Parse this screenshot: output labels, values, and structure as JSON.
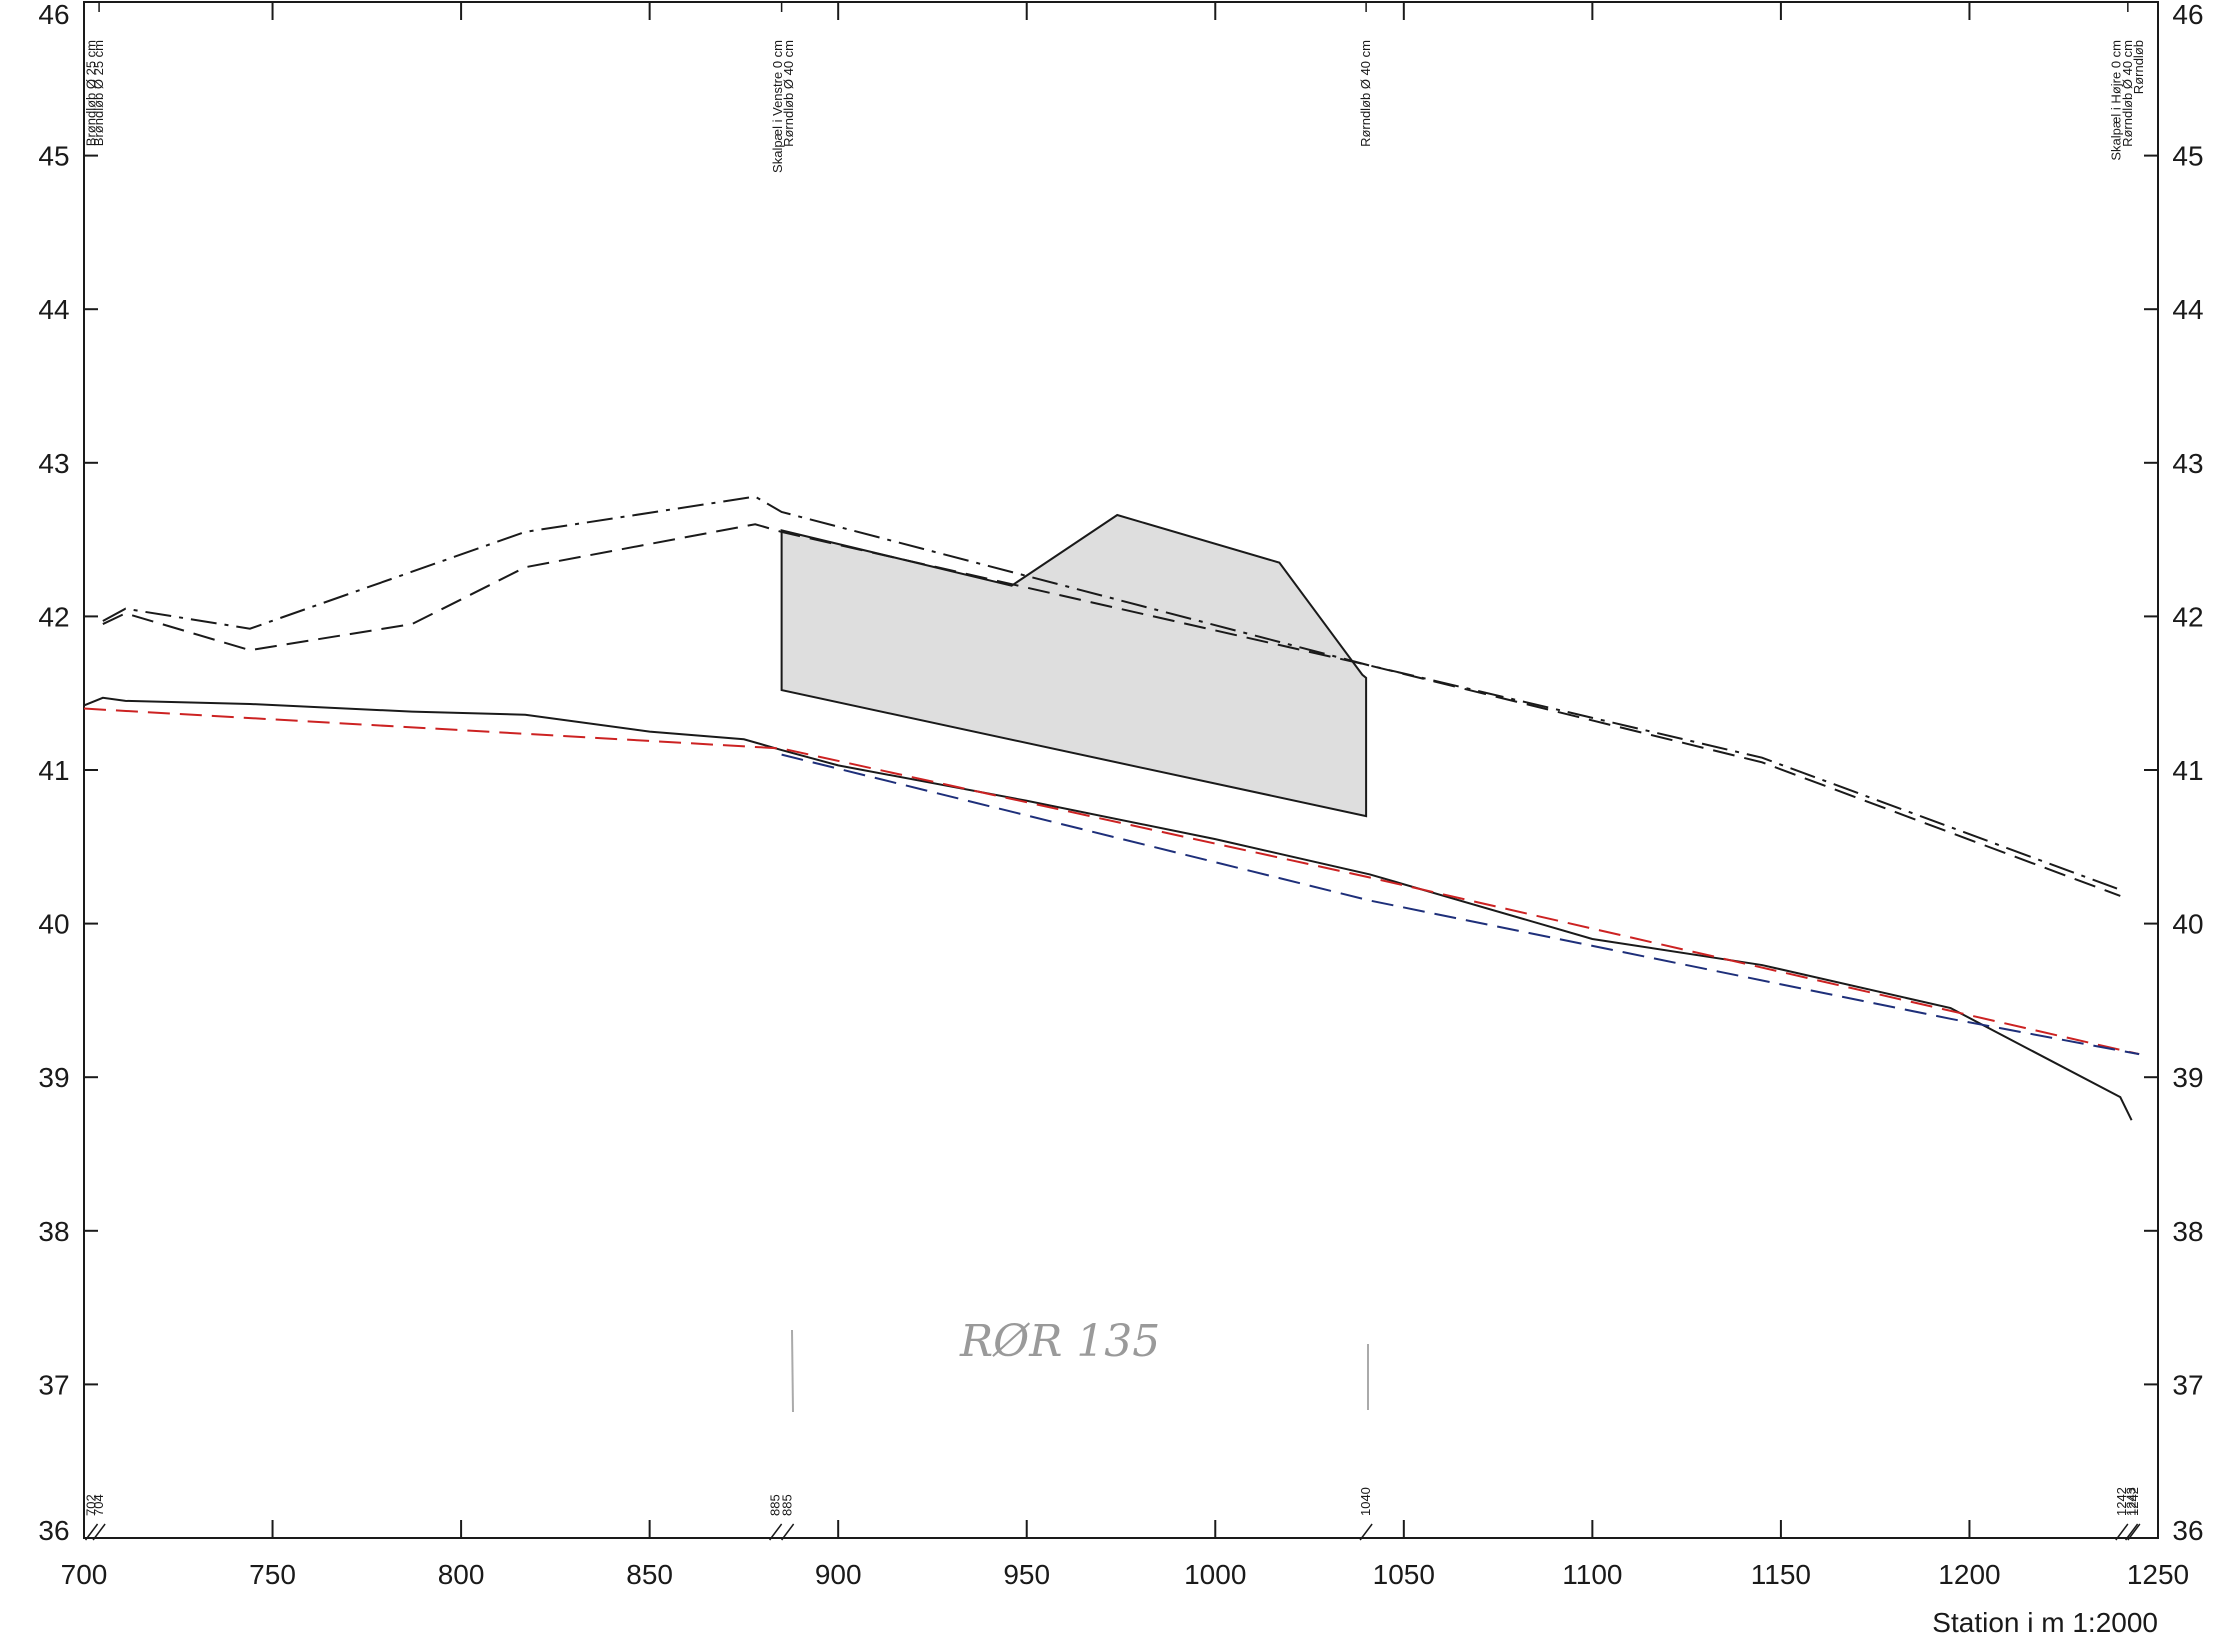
{
  "chart_data": {
    "type": "line",
    "title": "",
    "xlabel": "Station i m  1:2000",
    "ylabel": "",
    "xlim": [
      700,
      1250
    ],
    "ylim": [
      36,
      46
    ],
    "x_ticks": [
      700,
      750,
      800,
      850,
      900,
      950,
      1000,
      1050,
      1100,
      1150,
      1200,
      1250
    ],
    "y_ticks": [
      36,
      37,
      38,
      39,
      40,
      41,
      42,
      43,
      44,
      45,
      46
    ],
    "grid": false,
    "series": [
      {
        "name": "",
        "style": "dashdot",
        "color": "#1a1a1a",
        "x": [
          705,
          711,
          744,
          817,
          878,
          885,
          1041,
          1145,
          1240
        ],
        "y": [
          41.97,
          42.05,
          41.92,
          42.55,
          42.78,
          42.68,
          41.68,
          41.08,
          40.22
        ]
      },
      {
        "name": "",
        "style": "dashed",
        "color": "#1a1a1a",
        "x": [
          705,
          711,
          744,
          787,
          817,
          878,
          885,
          1041,
          1145,
          1240
        ],
        "y": [
          41.95,
          42.02,
          41.78,
          41.95,
          42.32,
          42.6,
          42.55,
          41.68,
          41.05,
          40.18
        ]
      },
      {
        "name": "",
        "style": "solid",
        "color": "#1a1a1a",
        "x": [
          700,
          705,
          711,
          744,
          787,
          817,
          850,
          875,
          885,
          900,
          950,
          1000,
          1041,
          1100,
          1145,
          1195,
          1240,
          1243
        ],
        "y": [
          41.42,
          41.47,
          41.45,
          41.43,
          41.38,
          41.36,
          41.25,
          41.2,
          41.13,
          41.03,
          40.8,
          40.55,
          40.32,
          39.9,
          39.73,
          39.45,
          38.87,
          38.72
        ]
      },
      {
        "name": "",
        "style": "dashed",
        "color": "#cc2222",
        "x": [
          700,
          885,
          1041,
          1245
        ],
        "y": [
          41.4,
          41.14,
          40.3,
          39.15
        ]
      },
      {
        "name": "",
        "style": "dashed",
        "color": "#1e2f7a",
        "x": [
          885,
          1041,
          1195,
          1245
        ],
        "y": [
          41.1,
          40.15,
          39.38,
          39.15
        ]
      }
    ],
    "filled_area": {
      "color": "#dedede",
      "x": [
        885,
        946,
        974,
        1017,
        1039,
        1040,
        1040,
        885
      ],
      "y": [
        42.56,
        42.2,
        42.66,
        42.35,
        41.62,
        41.6,
        40.7,
        41.52
      ]
    },
    "stations": [
      {
        "x": 702,
        "label": "702"
      },
      {
        "x": 704,
        "label": "704"
      },
      {
        "x": 885,
        "label": "885"
      },
      {
        "x": 885,
        "label": "885"
      },
      {
        "x": 1040,
        "label": "1040"
      },
      {
        "x": 1242,
        "label": "1242"
      },
      {
        "x": 1242,
        "label": "1242"
      },
      {
        "x": 1243,
        "label": "1243"
      }
    ],
    "annotations": [
      {
        "x": 702,
        "text": "Brøndløb Ø 25 cm"
      },
      {
        "x": 704,
        "text": "Brøndløb Ø 25 cm"
      },
      {
        "x": 884,
        "text": "Skalpæl i Venstre 0 cm"
      },
      {
        "x": 887,
        "text": "Rørndløb Ø 40 cm"
      },
      {
        "x": 1040,
        "text": "Rørndløb Ø 40 cm"
      },
      {
        "x": 1239,
        "text": "Skalpæl i Højre 0 cm"
      },
      {
        "x": 1242,
        "text": "Rørndløb Ø 40 cm"
      },
      {
        "x": 1245,
        "text": "Rørndløb"
      }
    ],
    "handwritten_note": "RØR 135"
  }
}
